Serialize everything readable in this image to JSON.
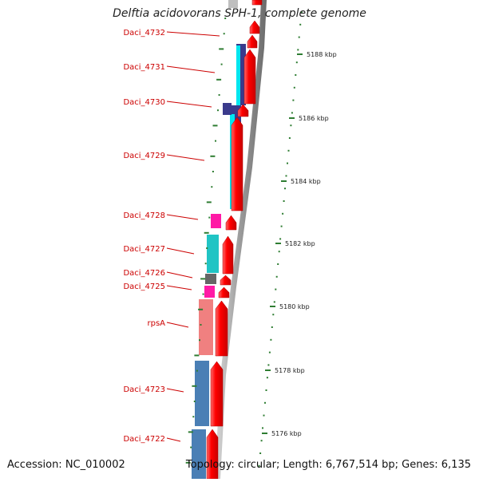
{
  "map": {
    "title": "Delftia acidovorans SPH-1, complete genome",
    "accession_text": "Accession: NC_010002",
    "topology_text": "Topology: circular; Length: 6,767,514 bp; Genes: 6,135"
  },
  "colors": {
    "label": "#cc0000",
    "cds": "#ff0000",
    "backbone": "#8a8a8a",
    "tick": "#2e7d32",
    "blue_dark": "#3a3a8c",
    "cyan": "#00e6f0",
    "magenta": "#ff1aa6",
    "teal": "#20c4c4",
    "gray_dark": "#666666",
    "salmon": "#f08080",
    "steel": "#4a7fb5"
  },
  "genes": [
    {
      "name": "Daci_4732"
    },
    {
      "name": "Daci_4731"
    },
    {
      "name": "Daci_4730"
    },
    {
      "name": "Daci_4729"
    },
    {
      "name": "Daci_4728"
    },
    {
      "name": "Daci_4727"
    },
    {
      "name": "Daci_4726"
    },
    {
      "name": "Daci_4725"
    },
    {
      "name": "rpsA"
    },
    {
      "name": "Daci_4723"
    },
    {
      "name": "Daci_4722"
    }
  ],
  "scale": [
    {
      "label": "5188 kbp"
    },
    {
      "label": "5186 kbp"
    },
    {
      "label": "5184 kbp"
    },
    {
      "label": "5182 kbp"
    },
    {
      "label": "5180 kbp"
    },
    {
      "label": "5178 kbp"
    },
    {
      "label": "5176 kbp"
    }
  ]
}
